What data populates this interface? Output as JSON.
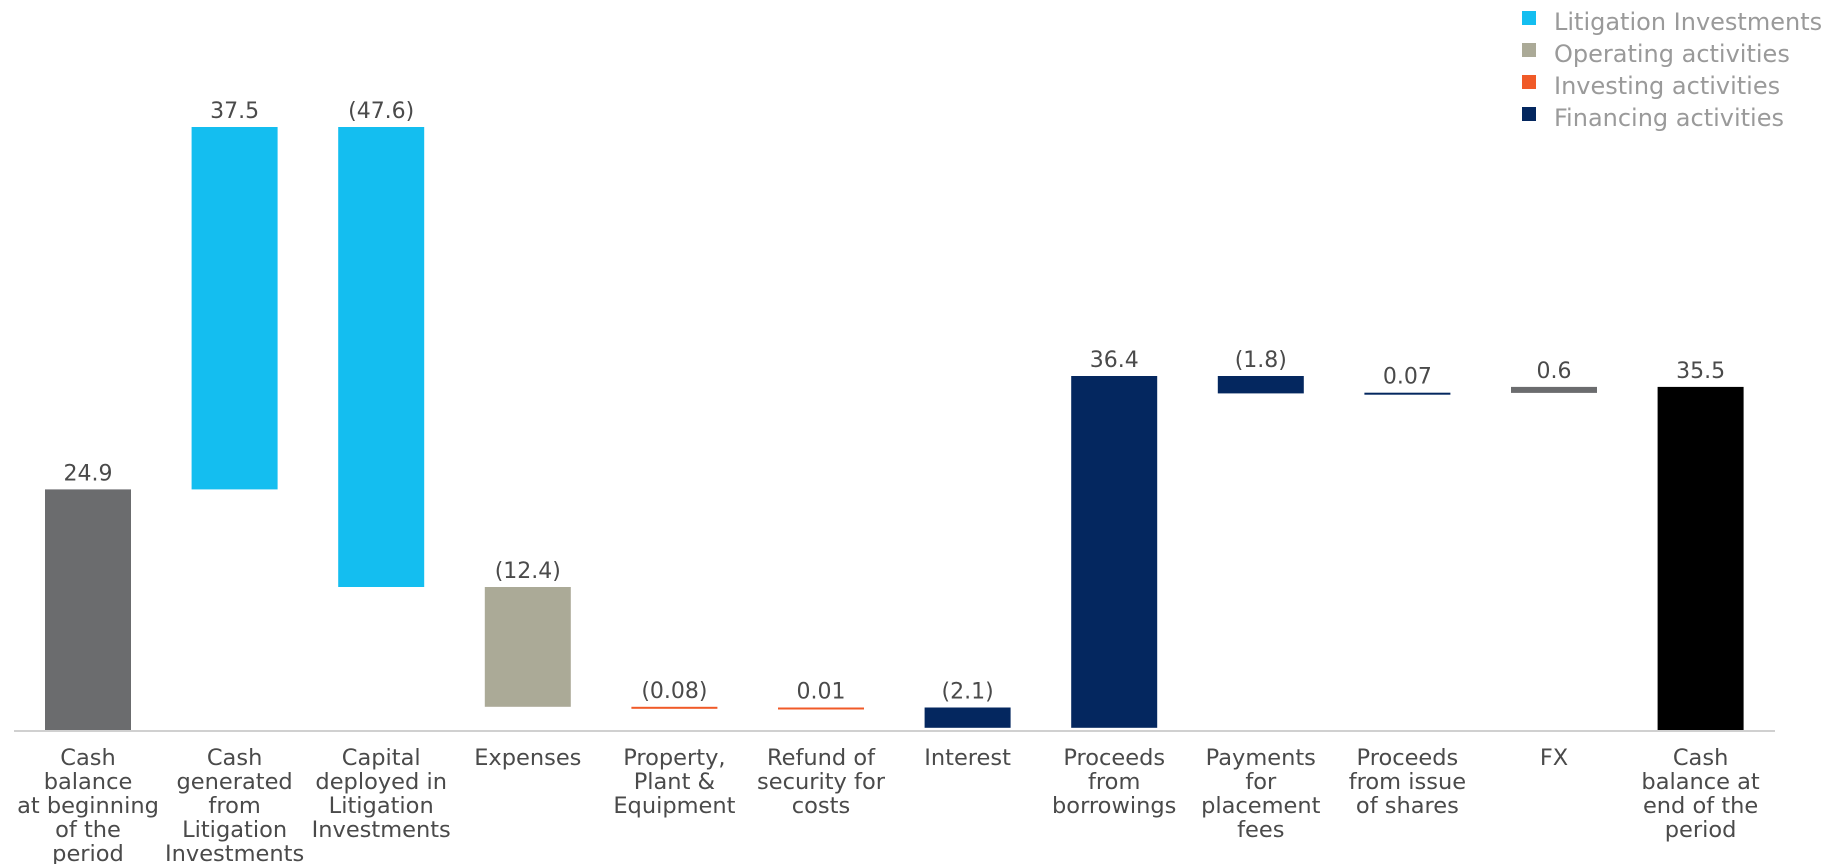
{
  "chart_data": {
    "type": "waterfall",
    "value_unit_note": "",
    "colors": {
      "litigation": "#14BEF0",
      "operating": "#ABAA97",
      "investing": "#F05A28",
      "financing": "#04275F",
      "start": "#6B6C6E",
      "fx": "#6B6C6E",
      "end": "#000000",
      "axis": "#d0d0d0"
    },
    "legend": [
      {
        "label": "Litigation Investments",
        "color": "#14BEF0"
      },
      {
        "label": "Operating activities",
        "color": "#ABAA97"
      },
      {
        "label": "Investing activities",
        "color": "#F05A28"
      },
      {
        "label": "Financing activities",
        "color": "#04275F"
      }
    ],
    "bars": [
      {
        "category": [
          "Cash",
          "balance",
          "at beginning",
          "of the",
          "period"
        ],
        "value": 24.9,
        "kind": "total",
        "group": "start",
        "label": "24.9"
      },
      {
        "category": [
          "Cash",
          "generated",
          "from",
          "Litigation",
          "Investments"
        ],
        "value": 37.5,
        "kind": "delta",
        "group": "litigation",
        "label": "37.5"
      },
      {
        "category": [
          "Capital",
          "deployed in",
          "Litigation",
          "Investments"
        ],
        "value": -47.6,
        "kind": "delta",
        "group": "litigation",
        "label": "(47.6)"
      },
      {
        "category": [
          "Expenses"
        ],
        "value": -12.4,
        "kind": "delta",
        "group": "operating",
        "label": "(12.4)"
      },
      {
        "category": [
          "Property,",
          "Plant &",
          "Equipment"
        ],
        "value": -0.08,
        "kind": "delta",
        "group": "investing",
        "label": "(0.08)"
      },
      {
        "category": [
          "Refund of",
          "security for",
          "costs"
        ],
        "value": 0.01,
        "kind": "delta",
        "group": "investing",
        "label": "0.01"
      },
      {
        "category": [
          "Interest"
        ],
        "value": -2.1,
        "kind": "delta",
        "group": "financing",
        "label": "(2.1)"
      },
      {
        "category": [
          "Proceeds",
          "from",
          "borrowings"
        ],
        "value": 36.4,
        "kind": "delta",
        "group": "financing",
        "label": "36.4"
      },
      {
        "category": [
          "Payments",
          "for",
          "placement",
          "fees"
        ],
        "value": -1.8,
        "kind": "delta",
        "group": "financing",
        "label": "(1.8)"
      },
      {
        "category": [
          "Proceeds",
          "from issue",
          "of shares"
        ],
        "value": 0.07,
        "kind": "delta",
        "group": "financing",
        "label": "0.07"
      },
      {
        "category": [
          "FX"
        ],
        "value": 0.6,
        "kind": "delta",
        "group": "fx",
        "label": "0.6"
      },
      {
        "category": [
          "Cash",
          "balance at",
          "end of the",
          "period"
        ],
        "value": 35.5,
        "kind": "total",
        "group": "end",
        "label": "35.5"
      }
    ]
  }
}
